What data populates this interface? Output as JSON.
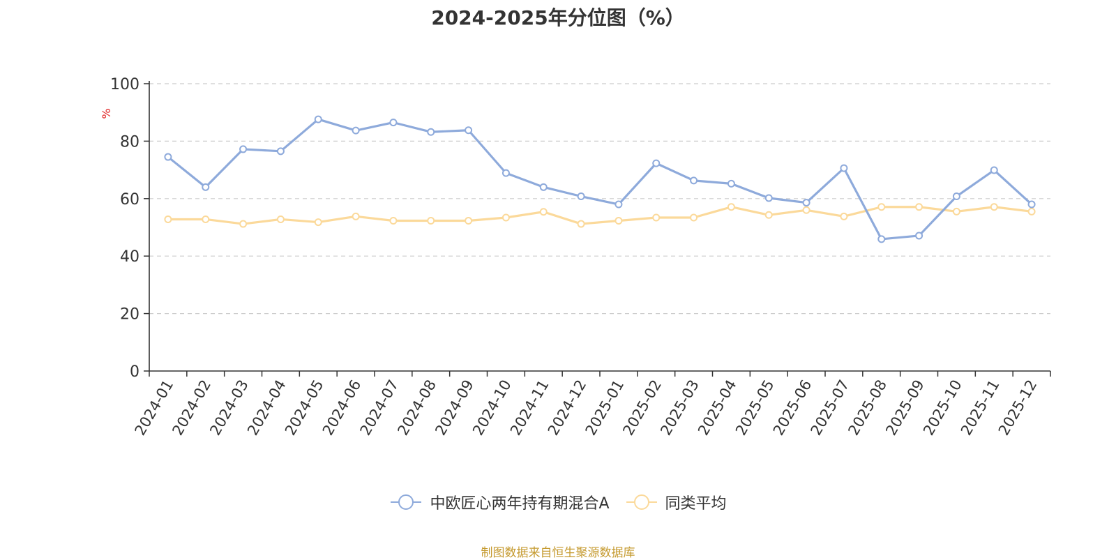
{
  "chart_data": {
    "type": "line",
    "title": "2024-2025年分位图（%）",
    "ylabel": "%",
    "xlabel": "",
    "ylim": [
      0,
      100
    ],
    "yticks": [
      0,
      20,
      40,
      60,
      80,
      100
    ],
    "grid": true,
    "legend_position": "bottom-center",
    "categories": [
      "2024-01",
      "2024-02",
      "2024-03",
      "2024-04",
      "2024-05",
      "2024-06",
      "2024-07",
      "2024-08",
      "2024-09",
      "2024-10",
      "2024-11",
      "2024-12",
      "2025-01",
      "2025-02",
      "2025-03",
      "2025-04",
      "2025-05",
      "2025-06",
      "2025-07",
      "2025-08",
      "2025-09",
      "2025-10",
      "2025-11",
      "2025-12"
    ],
    "series": [
      {
        "name": "中欧匠心两年持有期混合A",
        "color": "#8eaadb",
        "values": [
          74.5,
          64,
          77.2,
          76.5,
          87.6,
          83.7,
          86.5,
          83.2,
          83.8,
          68.9,
          64,
          60.8,
          58,
          72.3,
          66.3,
          65.2,
          60.2,
          58.6,
          70.6,
          45.9,
          47.1,
          60.8,
          69.9,
          58
        ]
      },
      {
        "name": "同类平均",
        "color": "#fbd99a",
        "values": [
          52.8,
          52.8,
          51.2,
          52.8,
          51.8,
          53.8,
          52.3,
          52.3,
          52.3,
          53.4,
          55.4,
          51.2,
          52.3,
          53.4,
          53.4,
          57.1,
          54.3,
          56,
          53.8,
          57.1,
          57.1,
          55.5,
          57.1,
          55.5
        ]
      }
    ]
  },
  "source": "制图数据来自恒生聚源数据库"
}
